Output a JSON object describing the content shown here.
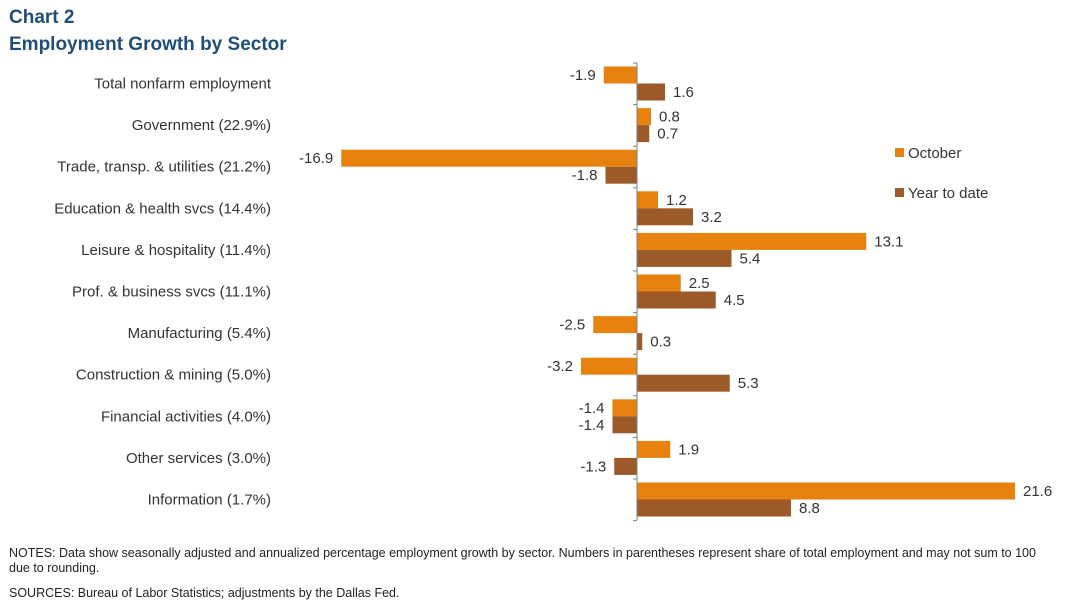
{
  "header": {
    "chart_number": "Chart 2",
    "title": "Employment Growth by Sector"
  },
  "colors": {
    "october": "#e8820e",
    "year_to_date": "#9c5a28",
    "axis": "#7f7f7f"
  },
  "chart_data": {
    "type": "bar",
    "orientation": "horizontal",
    "title": "Employment Growth by Sector",
    "categories": [
      "Total nonfarm employment",
      "Government (22.9%)",
      "Trade, transp. & utilities (21.2%)",
      "Education & health svcs (14.4%)",
      "Leisure & hospitality (11.4%)",
      "Prof. & business svcs (11.1%)",
      "Manufacturing (5.4%)",
      "Construction & mining (5.0%)",
      "Financial activities (4.0%)",
      "Other services (3.0%)",
      "Information (1.7%)"
    ],
    "series": [
      {
        "name": "October",
        "values": [
          -1.9,
          0.8,
          -16.9,
          1.2,
          13.1,
          2.5,
          -2.5,
          -3.2,
          -1.4,
          1.9,
          21.6
        ]
      },
      {
        "name": "Year to date",
        "values": [
          1.6,
          0.7,
          -1.8,
          3.2,
          5.4,
          4.5,
          0.3,
          5.3,
          -1.4,
          -1.3,
          8.8
        ]
      }
    ],
    "legend_position": "right",
    "grid": false
  },
  "footer": {
    "notes": "NOTES: Data show seasonally adjusted and annualized percentage employment growth by sector. Numbers in parentheses represent share of total employment and may not sum to 100 due to rounding.",
    "sources": "SOURCES: Bureau of Labor Statistics; adjustments by the Dallas Fed."
  }
}
